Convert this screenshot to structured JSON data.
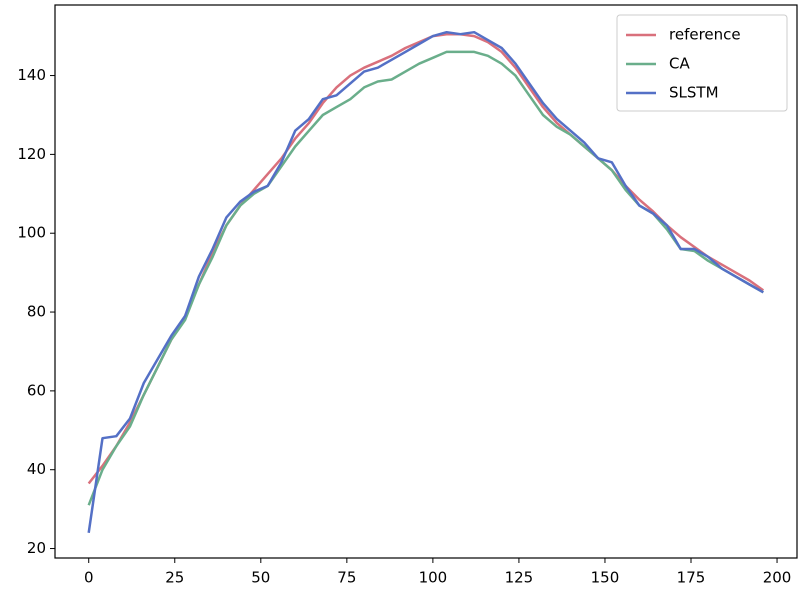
{
  "chart_data": {
    "type": "line",
    "x": [
      0,
      4,
      8,
      12,
      16,
      20,
      24,
      28,
      32,
      36,
      40,
      44,
      48,
      52,
      56,
      60,
      64,
      68,
      72,
      76,
      80,
      84,
      88,
      92,
      96,
      100,
      104,
      108,
      112,
      116,
      120,
      124,
      128,
      132,
      136,
      140,
      144,
      148,
      152,
      156,
      160,
      164,
      168,
      172,
      176,
      180,
      184,
      188,
      192,
      196
    ],
    "series": [
      {
        "name": "reference",
        "color": "#d9707c",
        "values": [
          36.5,
          41,
          46,
          52,
          59,
          66,
          73,
          79,
          87,
          95,
          102,
          107,
          111,
          115,
          119,
          124,
          128,
          133,
          137,
          140,
          142,
          143.5,
          145,
          147,
          148.5,
          150,
          150.5,
          150.5,
          150,
          148.5,
          146,
          142,
          137,
          132,
          128,
          125,
          122,
          119,
          116,
          112,
          108.5,
          105.5,
          102,
          99,
          96.5,
          94,
          92,
          90,
          88,
          85.5
        ]
      },
      {
        "name": "CA",
        "color": "#6aae8b",
        "values": [
          31,
          40,
          46,
          51,
          59,
          66,
          73,
          78,
          87,
          94,
          102,
          107,
          110,
          112,
          117,
          122,
          126,
          130,
          132,
          134,
          137,
          138.5,
          139,
          141,
          143,
          144.5,
          146,
          146,
          146,
          145,
          143,
          140,
          135,
          130,
          127,
          125,
          122,
          119,
          116,
          111,
          107,
          105,
          101,
          96,
          95.5,
          93,
          91,
          89,
          87,
          85
        ]
      },
      {
        "name": "SLSTM",
        "color": "#5470c6",
        "values": [
          24,
          48,
          48.5,
          53,
          62,
          68,
          74,
          79,
          89,
          96,
          104,
          108,
          110.5,
          112,
          118,
          126,
          129,
          134,
          135,
          138,
          141,
          142,
          144,
          146,
          148,
          150,
          151,
          150.5,
          151,
          149,
          147,
          143,
          138,
          133,
          129,
          126,
          123,
          119,
          118,
          112,
          107,
          105,
          102,
          96,
          96,
          94,
          91,
          89,
          87,
          85
        ]
      }
    ],
    "xlim": [
      -9.8,
      205.8
    ],
    "xticks": [
      0,
      25,
      50,
      75,
      100,
      125,
      150,
      175,
      200
    ],
    "ylim": [
      17.6,
      157.9
    ],
    "yticks": [
      20,
      40,
      60,
      80,
      100,
      120,
      140
    ],
    "grid": false,
    "legend": "upper-right"
  }
}
